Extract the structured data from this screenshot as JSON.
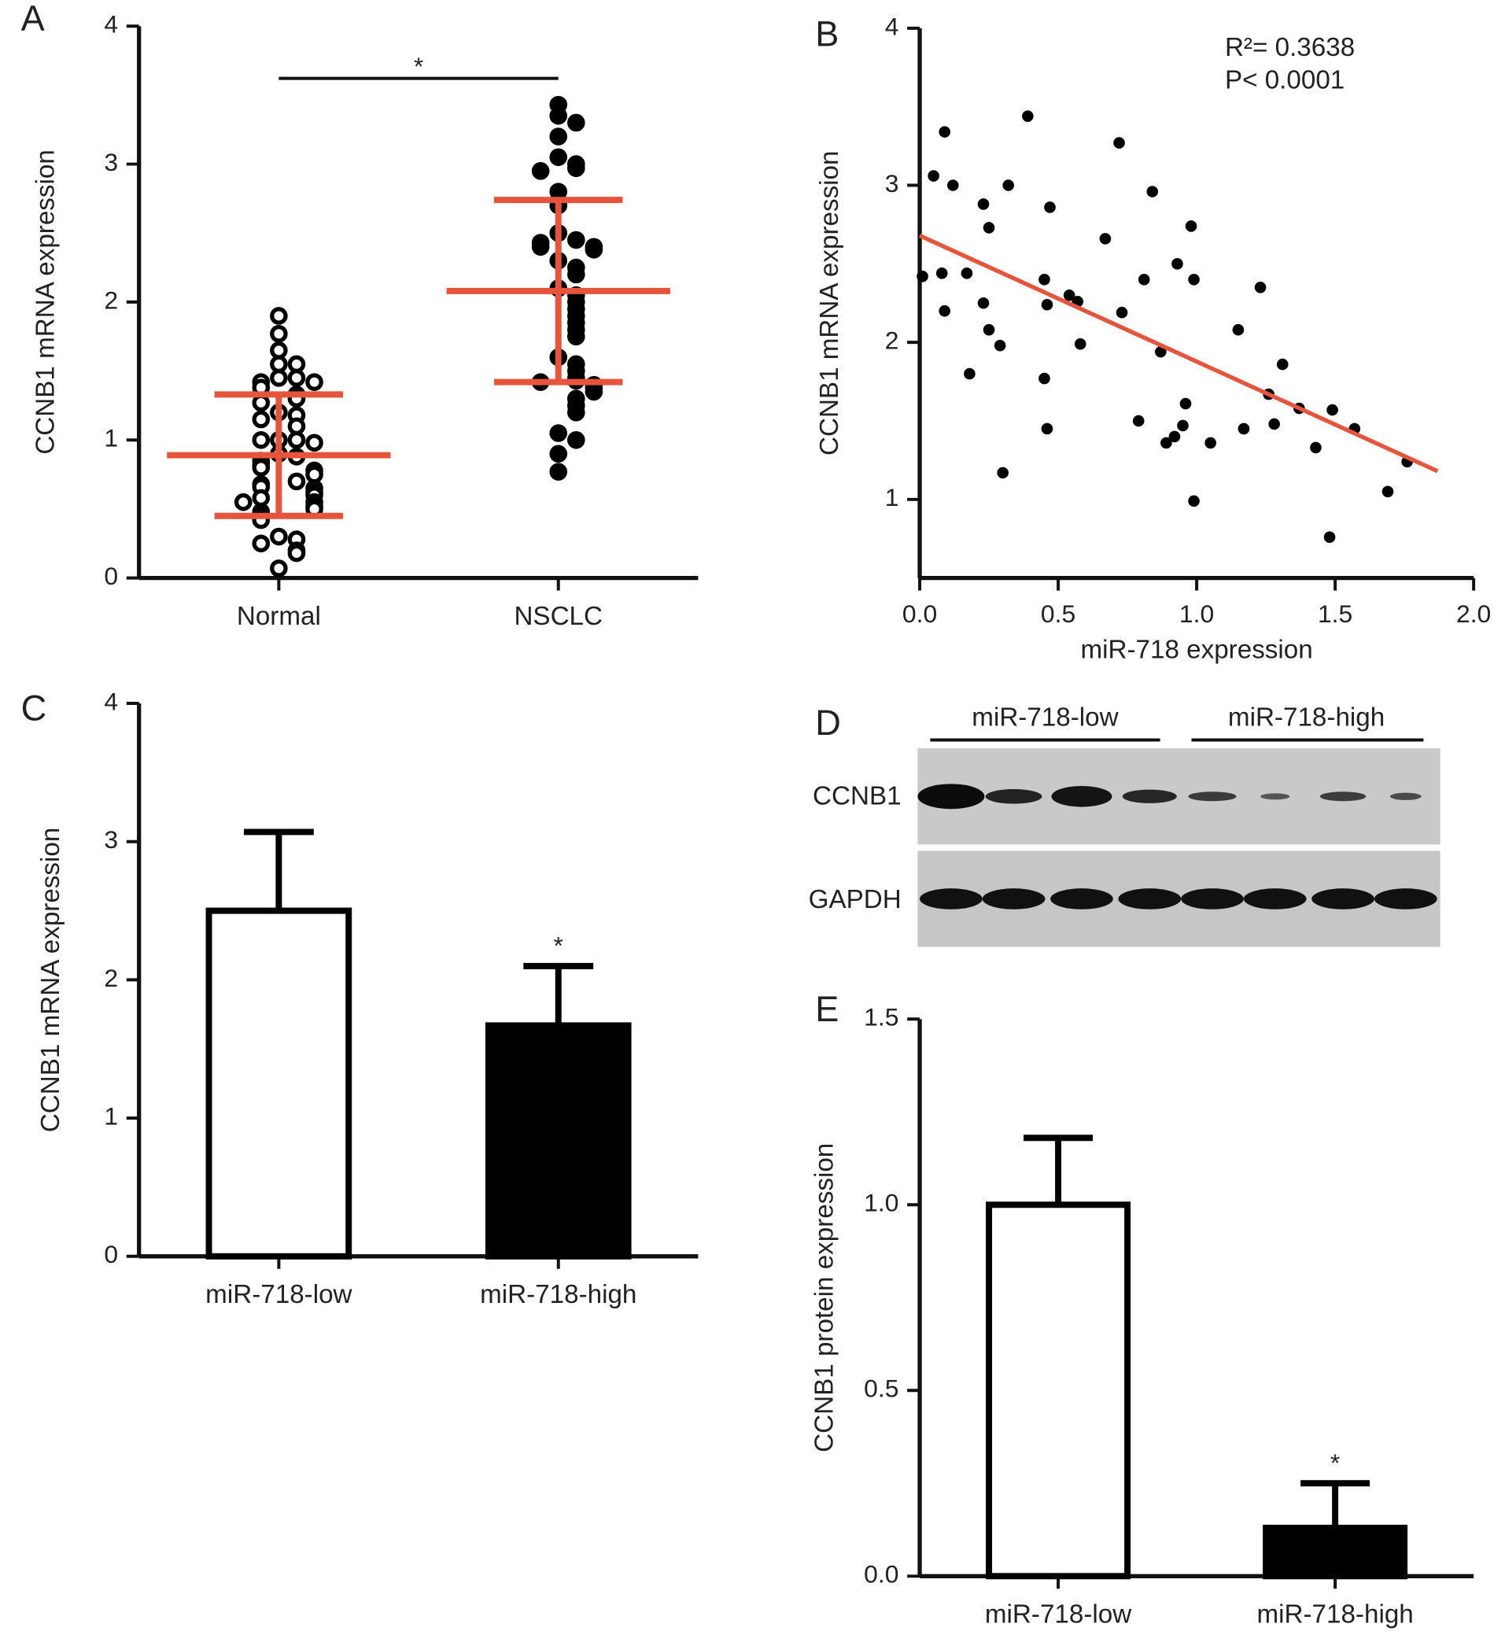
{
  "chart_data": [
    {
      "type": "strip",
      "panel_label": "A",
      "ylabel": "CCNB1 mRNA expression",
      "categories": [
        "Normal",
        "NSCLC"
      ],
      "values": [
        [
          1.9,
          1.77,
          1.65,
          1.55,
          1.55,
          1.45,
          1.45,
          1.42,
          1.42,
          1.38,
          1.33,
          1.3,
          1.27,
          1.2,
          1.18,
          1.15,
          1.1,
          1.0,
          1.0,
          1.0,
          0.98,
          0.9,
          0.88,
          0.85,
          0.82,
          0.8,
          0.78,
          0.75,
          0.7,
          0.68,
          0.66,
          0.65,
          0.62,
          0.6,
          0.58,
          0.55,
          0.55,
          0.52,
          0.5,
          0.48,
          0.45,
          0.42,
          0.3,
          0.28,
          0.25,
          0.2,
          0.18,
          0.07
        ],
        [
          3.43,
          3.35,
          3.3,
          3.2,
          3.05,
          3.0,
          2.97,
          2.95,
          2.8,
          2.7,
          2.5,
          2.45,
          2.43,
          2.4,
          2.4,
          2.38,
          2.3,
          2.25,
          2.2,
          2.1,
          2.05,
          2.0,
          1.95,
          1.9,
          1.85,
          1.8,
          1.75,
          1.6,
          1.55,
          1.5,
          1.45,
          1.43,
          1.42,
          1.4,
          1.38,
          1.35,
          1.3,
          1.25,
          1.2,
          1.05,
          1.0,
          0.9,
          0.77
        ]
      ],
      "mean": [
        0.89,
        2.08
      ],
      "sd": [
        0.44,
        0.66
      ],
      "marker_fill": [
        "#ffffff",
        "#000000"
      ],
      "color": "#000000",
      "summary_color": "#e5543b",
      "annotation": "*",
      "ylim": [
        0,
        4
      ],
      "yticks": [
        0,
        1,
        2,
        3,
        4
      ]
    },
    {
      "type": "scatter",
      "panel_label": "B",
      "ylabel": "CCNB1 mRNA expression",
      "xlabel": "miR-718 expression",
      "annotations": [
        "R²= 0.3638",
        "P< 0.0001"
      ],
      "x": [
        0.01,
        0.05,
        0.09,
        0.12,
        0.08,
        0.09,
        0.17,
        0.18,
        0.23,
        0.25,
        0.23,
        0.25,
        0.29,
        0.32,
        0.3,
        0.39,
        0.45,
        0.47,
        0.46,
        0.45,
        0.46,
        0.54,
        0.57,
        0.58,
        0.67,
        0.72,
        0.73,
        0.79,
        0.81,
        0.84,
        0.87,
        0.89,
        0.93,
        0.92,
        0.95,
        0.96,
        0.98,
        0.99,
        0.99,
        1.05,
        1.15,
        1.17,
        1.23,
        1.26,
        1.31,
        1.28,
        1.37,
        1.43,
        1.49,
        1.48,
        1.57,
        1.69,
        1.76
      ],
      "y": [
        2.42,
        3.06,
        3.34,
        3.0,
        2.44,
        2.2,
        2.44,
        1.8,
        2.88,
        2.73,
        2.25,
        2.08,
        1.98,
        3.0,
        1.17,
        3.44,
        2.4,
        2.86,
        2.24,
        1.77,
        1.45,
        2.3,
        2.26,
        1.99,
        2.66,
        3.27,
        2.19,
        1.5,
        2.4,
        2.96,
        1.94,
        1.36,
        2.5,
        1.4,
        1.47,
        1.61,
        2.74,
        2.4,
        0.99,
        1.36,
        2.08,
        1.45,
        2.35,
        1.67,
        1.86,
        1.48,
        1.58,
        1.33,
        1.57,
        0.76,
        1.45,
        1.05,
        1.24
      ],
      "color": "#000000",
      "fit": {
        "x": [
          0,
          1.87
        ],
        "y": [
          2.68,
          1.18
        ],
        "color": "#e5543b"
      },
      "xlim": [
        0,
        2
      ],
      "xticks": [
        {
          "value": 0,
          "label": "0.0"
        },
        0.5,
        {
          "value": 1,
          "label": "1.0"
        },
        1.5,
        {
          "value": 2,
          "label": "2.0"
        }
      ],
      "ylim": [
        0.5,
        4
      ],
      "yticks": [
        1,
        2,
        3,
        4
      ]
    },
    {
      "type": "bar",
      "panel_label": "C",
      "ylabel": "CCNB1 mRNA expression",
      "categories": [
        "miR-718-low",
        "miR-718-high"
      ],
      "values": [
        2.5,
        1.67
      ],
      "errors": [
        0.57,
        0.43
      ],
      "fills": [
        "#ffffff",
        "#000000"
      ],
      "color": "#000000",
      "annotation": "*",
      "ylim": [
        0,
        4
      ],
      "yticks": [
        0,
        1,
        2,
        3,
        4
      ]
    },
    {
      "type": "bar",
      "panel_label": "E",
      "ylabel": "CCNB1 protein expression",
      "categories": [
        "miR-718-low",
        "miR-718-high"
      ],
      "values": [
        1.0,
        0.13
      ],
      "errors": [
        0.18,
        0.12
      ],
      "fills": [
        "#ffffff",
        "#000000"
      ],
      "color": "#000000",
      "annotation": "*",
      "ylim": [
        0,
        1.5
      ],
      "yticks": [
        {
          "value": 0,
          "label": "0.0"
        },
        0.5,
        {
          "value": 1,
          "label": "1.0"
        },
        1.5
      ]
    }
  ],
  "western_blot": {
    "panel_label": "D",
    "groups": [
      "miR-718-low",
      "miR-718-high"
    ],
    "rows": [
      "CCNB1",
      "GAPDH"
    ]
  }
}
